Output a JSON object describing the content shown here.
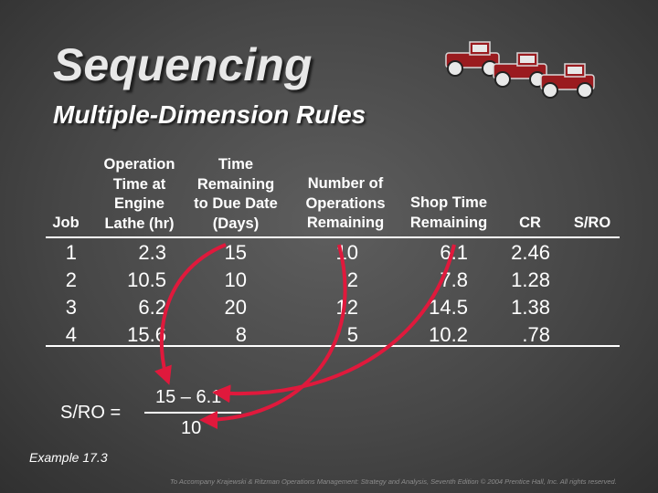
{
  "slide": {
    "title": "Sequencing",
    "subtitle": "Multiple-Dimension Rules"
  },
  "table": {
    "headers": {
      "job": "Job",
      "op_time": "Operation\nTime at\nEngine\nLathe (hr)",
      "time_remaining": "Time\nRemaining\nto Due Date\n(Days)",
      "num_ops": "Number of\nOperations\nRemaining",
      "shop_time": "Shop Time\nRemaining",
      "cr": "CR",
      "sro": "S/RO"
    },
    "columns": {
      "job": "1\n2\n3\n4",
      "op_time": "2.3\n10.5\n6.2\n15.6",
      "time_remaining": "15\n10\n20\n8",
      "num_ops": "10\n2\n12\n5",
      "shop_time": "6.1\n7.8\n14.5\n10.2",
      "cr": "2.46\n1.28\n1.38\n.78"
    }
  },
  "formula": {
    "label": "S/RO =",
    "numerator": "15 – 6.1",
    "denominator": "10"
  },
  "example": "Example 17.3",
  "footer": "To Accompany Krajewski & Ritzman Operations Management: Strategy and Analysis, Seventh Edition © 2004 Prentice Hall, Inc. All rights reserved.",
  "colors": {
    "arrow": "#e0193c",
    "car_body": "#9a1b1f"
  },
  "icons": [
    "vintage-cars-icon"
  ]
}
